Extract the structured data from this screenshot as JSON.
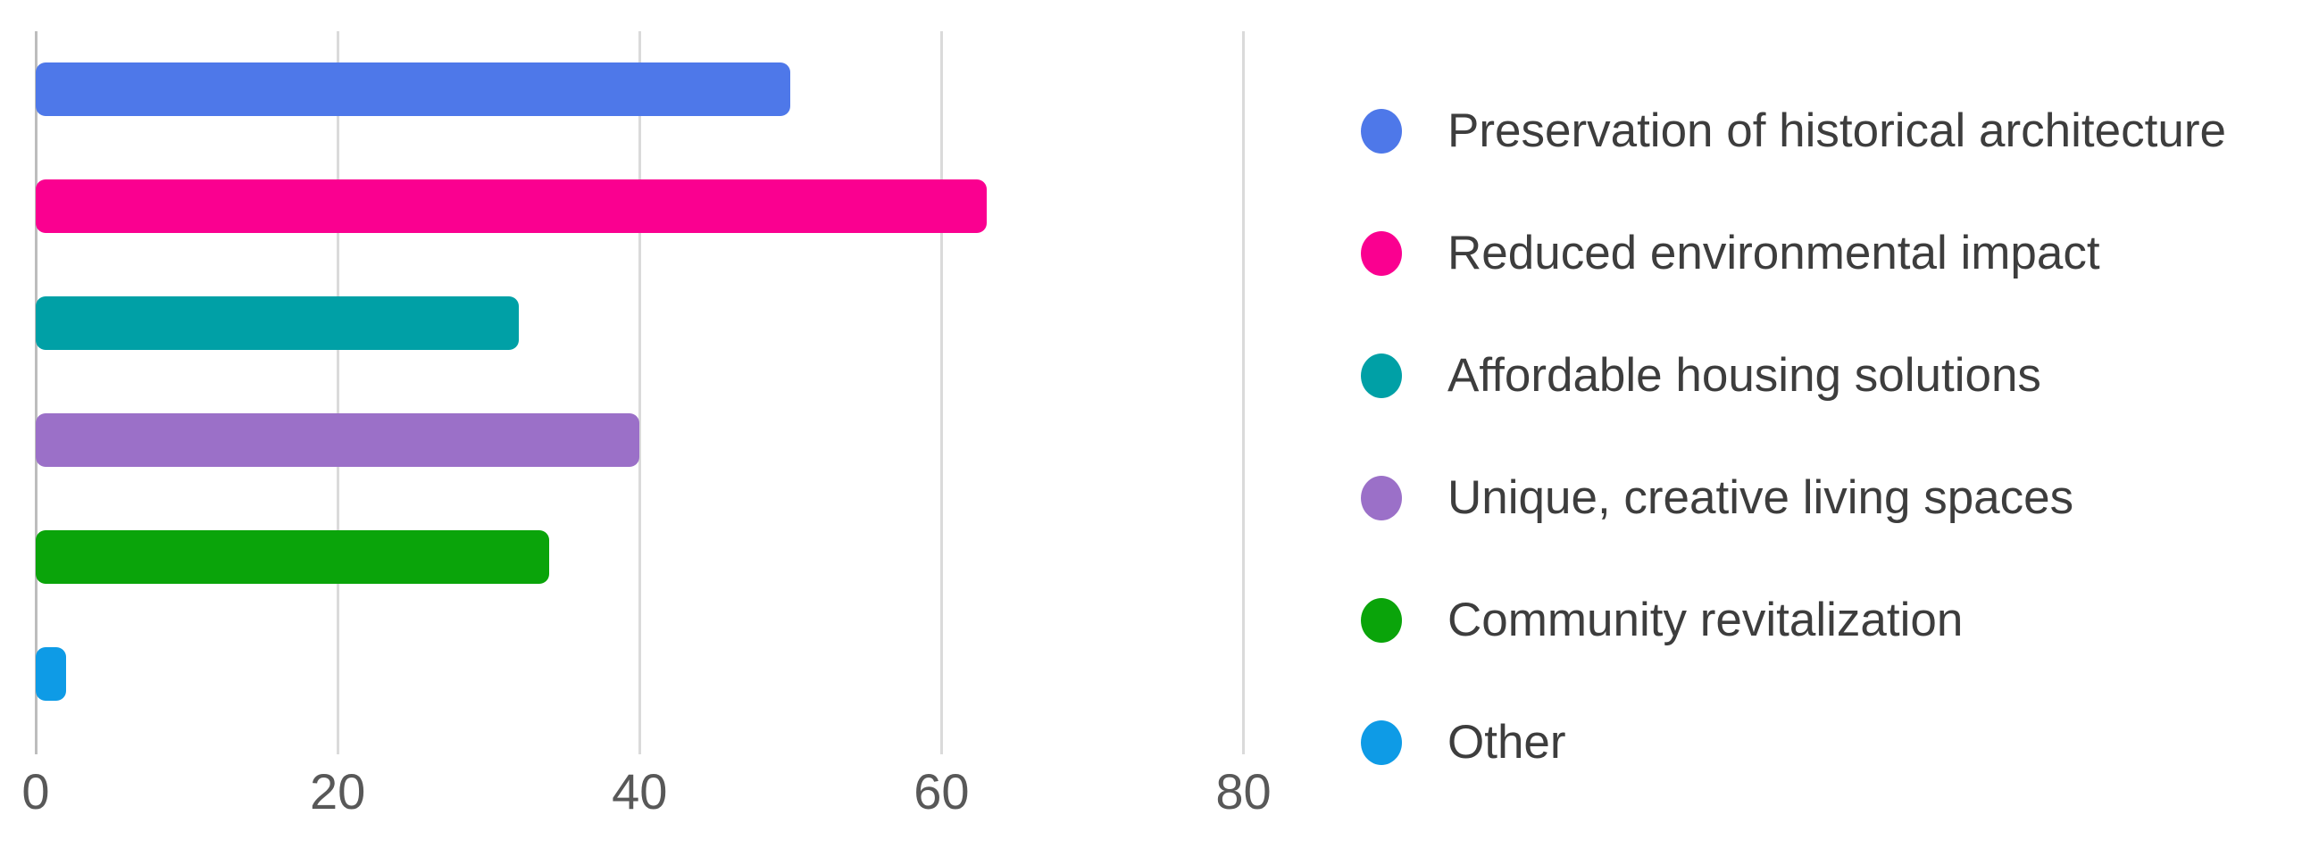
{
  "chart_data": {
    "type": "bar",
    "orientation": "horizontal",
    "title": "",
    "xlabel": "",
    "ylabel": "",
    "categories": [
      "Preservation of historical architecture",
      "Reduced environmental impact",
      "Affordable housing solutions",
      "Unique, creative living spaces",
      "Community revitalization",
      "Other"
    ],
    "values": [
      50,
      63,
      32,
      40,
      34,
      2
    ],
    "bar_colors": [
      "#4e78e9",
      "#fa0090",
      "#00a0a6",
      "#9b70c8",
      "#0aa40a",
      "#0e9be6"
    ],
    "x_ticks": [
      "0",
      "20",
      "40",
      "60",
      "80"
    ],
    "x_tick_values": [
      0,
      20,
      40,
      60,
      80
    ],
    "xlim": [
      0,
      85
    ],
    "grid": true,
    "legend_position": "right",
    "legend_entries": [
      {
        "label": "Preservation of historical architecture",
        "color": "#4e78e9"
      },
      {
        "label": "Reduced environmental impact",
        "color": "#fa0090"
      },
      {
        "label": "Affordable housing solutions",
        "color": "#00a0a6"
      },
      {
        "label": "Unique, creative living spaces",
        "color": "#9b70c8"
      },
      {
        "label": "Community revitalization",
        "color": "#0aa40a"
      },
      {
        "label": "Other",
        "color": "#0e9be6"
      }
    ]
  },
  "colors": {
    "background": "#ffffff",
    "gridline": "#dadada",
    "axis_line": "#bdbdbd",
    "tick_label": "#585858",
    "legend_text": "#3d3d3d"
  }
}
